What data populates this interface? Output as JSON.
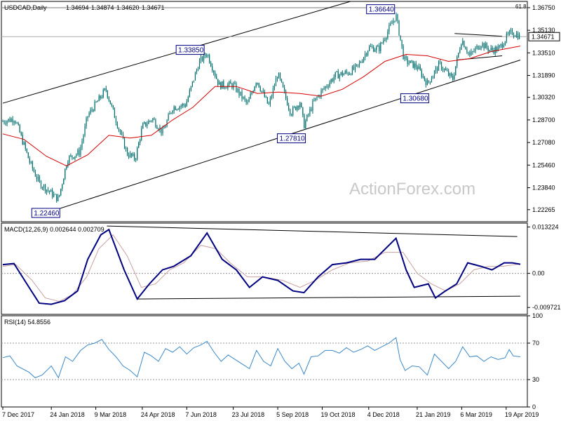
{
  "chart_data": [
    {
      "panel": "price",
      "type": "candlestick",
      "title": "USDCAD,Daily",
      "ohlc_header": [
        "1.34694",
        "1.34874",
        "1.34620",
        "1.34671"
      ],
      "last_price_label": "1.34671",
      "fib_label": "61.8",
      "fib_level": 1.3675,
      "ylim": [
        1.214,
        1.372
      ],
      "yticks": [
        "1.36750",
        "1.35130",
        "1.33510",
        "1.31890",
        "1.30320",
        "1.28700",
        "1.27080",
        "1.25460",
        "1.23840",
        "1.22265"
      ],
      "ytick_values": [
        1.3675,
        1.3513,
        1.3351,
        1.3189,
        1.3032,
        1.287,
        1.2708,
        1.2546,
        1.2384,
        1.22265
      ],
      "xticks": [
        "7 Dec 2017",
        "24 Jan 2018",
        "9 Mar 2018",
        "24 Apr 2018",
        "7 Jun 2018",
        "23 Jul 2018",
        "5 Sep 2018",
        "19 Oct 2018",
        "4 Dec 2018",
        "21 Jan 2019",
        "6 Mar 2019",
        "19 Apr 2019"
      ],
      "annotations": [
        {
          "text": "1.22460",
          "date": "2018-01-31",
          "value": 1.2246
        },
        {
          "text": "1.33850",
          "date": "2018-06-27",
          "value": 1.3385
        },
        {
          "text": "1.27810",
          "date": "2018-10-01",
          "value": 1.2781
        },
        {
          "text": "1.36640",
          "date": "2018-12-31",
          "value": 1.3664
        },
        {
          "text": "1.30680",
          "date": "2019-01-31",
          "value": 1.3068
        }
      ],
      "close_path": [
        [
          "2017-12-07",
          1.286
        ],
        [
          "2017-12-19",
          1.288
        ],
        [
          "2018-01-03",
          1.256
        ],
        [
          "2018-01-12",
          1.242
        ],
        [
          "2018-01-31",
          1.23
        ],
        [
          "2018-02-09",
          1.259
        ],
        [
          "2018-02-21",
          1.264
        ],
        [
          "2018-03-01",
          1.29
        ],
        [
          "2018-03-19",
          1.309
        ],
        [
          "2018-03-28",
          1.289
        ],
        [
          "2018-04-09",
          1.263
        ],
        [
          "2018-04-17",
          1.259
        ],
        [
          "2018-04-24",
          1.282
        ],
        [
          "2018-05-04",
          1.288
        ],
        [
          "2018-05-14",
          1.278
        ],
        [
          "2018-05-24",
          1.296
        ],
        [
          "2018-06-06",
          1.298
        ],
        [
          "2018-06-19",
          1.328
        ],
        [
          "2018-06-27",
          1.335
        ],
        [
          "2018-07-09",
          1.312
        ],
        [
          "2018-07-23",
          1.312
        ],
        [
          "2018-08-06",
          1.298
        ],
        [
          "2018-08-15",
          1.316
        ],
        [
          "2018-08-27",
          1.297
        ],
        [
          "2018-09-05",
          1.32
        ],
        [
          "2018-09-18",
          1.292
        ],
        [
          "2018-09-27",
          1.3
        ],
        [
          "2018-10-01",
          1.283
        ],
        [
          "2018-10-10",
          1.299
        ],
        [
          "2018-10-19",
          1.308
        ],
        [
          "2018-11-01",
          1.319
        ],
        [
          "2018-11-14",
          1.321
        ],
        [
          "2018-11-23",
          1.325
        ],
        [
          "2018-12-04",
          1.339
        ],
        [
          "2018-12-14",
          1.338
        ],
        [
          "2018-12-31",
          1.362
        ],
        [
          "2019-01-08",
          1.33
        ],
        [
          "2019-01-21",
          1.325
        ],
        [
          "2019-01-31",
          1.313
        ],
        [
          "2019-02-12",
          1.327
        ],
        [
          "2019-02-25",
          1.316
        ],
        [
          "2019-03-06",
          1.345
        ],
        [
          "2019-03-14",
          1.333
        ],
        [
          "2019-03-25",
          1.342
        ],
        [
          "2019-04-03",
          1.337
        ],
        [
          "2019-04-12",
          1.338
        ],
        [
          "2019-04-19",
          1.346
        ],
        [
          "2019-04-25",
          1.35
        ],
        [
          "2019-05-03",
          1.3467
        ]
      ],
      "ema": [
        [
          "2017-12-07",
          1.277
        ],
        [
          "2017-12-28",
          1.273
        ],
        [
          "2018-01-19",
          1.261
        ],
        [
          "2018-02-08",
          1.254
        ],
        [
          "2018-03-01",
          1.262
        ],
        [
          "2018-03-22",
          1.276
        ],
        [
          "2018-04-12",
          1.274
        ],
        [
          "2018-05-03",
          1.276
        ],
        [
          "2018-05-24",
          1.287
        ],
        [
          "2018-06-13",
          1.296
        ],
        [
          "2018-07-05",
          1.311
        ],
        [
          "2018-07-26",
          1.311
        ],
        [
          "2018-08-16",
          1.306
        ],
        [
          "2018-09-06",
          1.307
        ],
        [
          "2018-09-27",
          1.306
        ],
        [
          "2018-10-18",
          1.304
        ],
        [
          "2018-11-08",
          1.309
        ],
        [
          "2018-11-29",
          1.318
        ],
        [
          "2018-12-20",
          1.329
        ],
        [
          "2019-01-10",
          1.334
        ],
        [
          "2019-01-31",
          1.333
        ],
        [
          "2019-02-21",
          1.329
        ],
        [
          "2019-03-14",
          1.331
        ],
        [
          "2019-04-04",
          1.336
        ],
        [
          "2019-05-03",
          1.34
        ]
      ],
      "trendlines": [
        {
          "from": [
            "2017-12-07",
            1.299
          ],
          "to": [
            "2018-11-16",
            1.372
          ]
        },
        {
          "from": [
            "2018-01-26",
            1.222
          ],
          "to": [
            "2019-05-03",
            1.33
          ]
        },
        {
          "from": [
            "2019-02-27",
            1.349
          ],
          "to": [
            "2019-04-15",
            1.347
          ]
        },
        {
          "from": [
            "2019-03-01",
            1.33
          ],
          "to": [
            "2019-04-15",
            1.333
          ]
        }
      ]
    },
    {
      "panel": "macd",
      "type": "line",
      "title": "MACD(12,26,9) 0.002644 0.002709",
      "ylim": [
        -0.01168,
        0.01432
      ],
      "yticks": [
        "0.013224",
        "0.00",
        "-0.009721"
      ],
      "ytick_values": [
        0.013224,
        0.0,
        -0.009721
      ],
      "series": [
        {
          "values": [
            [
              "2017-12-07",
              0.0025
            ],
            [
              "2017-12-18",
              0.0028
            ],
            [
              "2018-01-02",
              -0.004
            ],
            [
              "2018-01-12",
              -0.0085
            ],
            [
              "2018-01-24",
              -0.0088
            ],
            [
              "2018-02-06",
              -0.0078
            ],
            [
              "2018-02-19",
              -0.005
            ],
            [
              "2018-03-01",
              0.004
            ],
            [
              "2018-03-14",
              0.011
            ],
            [
              "2018-03-22",
              0.0125
            ],
            [
              "2018-04-06",
              0.001
            ],
            [
              "2018-04-19",
              -0.0073
            ],
            [
              "2018-05-01",
              -0.003
            ],
            [
              "2018-05-14",
              0.001
            ],
            [
              "2018-05-25",
              0.002
            ],
            [
              "2018-06-11",
              0.005
            ],
            [
              "2018-06-27",
              0.0115
            ],
            [
              "2018-07-12",
              0.004
            ],
            [
              "2018-07-26",
              0.001
            ],
            [
              "2018-08-08",
              -0.004
            ],
            [
              "2018-08-21",
              -0.001
            ],
            [
              "2018-09-05",
              -0.002
            ],
            [
              "2018-09-20",
              -0.005
            ],
            [
              "2018-10-01",
              -0.0055
            ],
            [
              "2018-10-15",
              -0.001
            ],
            [
              "2018-10-29",
              0.0025
            ],
            [
              "2018-11-12",
              0.003
            ],
            [
              "2018-11-26",
              0.004
            ],
            [
              "2018-12-10",
              0.004
            ],
            [
              "2018-12-31",
              0.01
            ],
            [
              "2019-01-10",
              0.001
            ],
            [
              "2019-01-18",
              -0.004
            ],
            [
              "2019-02-01",
              -0.003
            ],
            [
              "2019-02-08",
              -0.007
            ],
            [
              "2019-02-18",
              -0.005
            ],
            [
              "2019-03-01",
              -0.003
            ],
            [
              "2019-03-12",
              0.003
            ],
            [
              "2019-03-25",
              0.002
            ],
            [
              "2019-04-05",
              0.001
            ],
            [
              "2019-04-17",
              0.003
            ],
            [
              "2019-04-25",
              0.003
            ],
            [
              "2019-05-03",
              0.0026
            ]
          ]
        },
        {
          "values": [
            [
              "2017-12-07",
              0.002
            ],
            [
              "2017-12-20",
              0.0025
            ],
            [
              "2018-01-05",
              -0.002
            ],
            [
              "2018-01-18",
              -0.007
            ],
            [
              "2018-02-01",
              -0.008
            ],
            [
              "2018-02-14",
              -0.006
            ],
            [
              "2018-02-28",
              -0.001
            ],
            [
              "2018-03-12",
              0.007
            ],
            [
              "2018-03-26",
              0.011
            ],
            [
              "2018-04-09",
              0.005
            ],
            [
              "2018-04-23",
              -0.004
            ],
            [
              "2018-05-07",
              -0.003
            ],
            [
              "2018-05-21",
              0.001
            ],
            [
              "2018-06-04",
              0.003
            ],
            [
              "2018-06-21",
              0.008
            ],
            [
              "2018-07-06",
              0.007
            ],
            [
              "2018-07-20",
              0.003
            ],
            [
              "2018-08-06",
              -0.001
            ],
            [
              "2018-08-22",
              -0.001
            ],
            [
              "2018-09-10",
              -0.002
            ],
            [
              "2018-09-27",
              -0.004
            ],
            [
              "2018-10-12",
              -0.002
            ],
            [
              "2018-10-29",
              0.001
            ],
            [
              "2018-11-15",
              0.003
            ],
            [
              "2018-12-03",
              0.0035
            ],
            [
              "2018-12-20",
              0.006
            ],
            [
              "2019-01-07",
              0.006
            ],
            [
              "2019-01-21",
              0.0
            ],
            [
              "2019-02-04",
              -0.003
            ],
            [
              "2019-02-18",
              -0.005
            ],
            [
              "2019-03-04",
              -0.003
            ],
            [
              "2019-03-18",
              0.001
            ],
            [
              "2019-04-01",
              0.002
            ],
            [
              "2019-04-15",
              0.002
            ],
            [
              "2019-05-03",
              0.0027
            ]
          ]
        }
      ],
      "trendlines": [
        {
          "from": [
            "2018-03-20",
            0.0135
          ],
          "to": [
            "2019-04-30",
            0.0105
          ]
        },
        {
          "from": [
            "2018-04-19",
            -0.0073
          ],
          "to": [
            "2019-05-03",
            -0.0065
          ]
        }
      ]
    },
    {
      "panel": "rsi",
      "type": "line",
      "title": "RSI(14) 54.8556",
      "ylim": [
        0,
        100
      ],
      "yticks": [
        "100",
        "70",
        "30",
        "0"
      ],
      "ytick_values": [
        100,
        70,
        30,
        0
      ],
      "series": [
        {
          "values": [
            [
              "2017-12-07",
              54
            ],
            [
              "2017-12-14",
              56
            ],
            [
              "2017-12-21",
              45
            ],
            [
              "2018-01-02",
              38
            ],
            [
              "2018-01-08",
              32
            ],
            [
              "2018-01-15",
              35
            ],
            [
              "2018-01-24",
              45
            ],
            [
              "2018-01-31",
              32
            ],
            [
              "2018-02-07",
              55
            ],
            [
              "2018-02-14",
              50
            ],
            [
              "2018-02-22",
              62
            ],
            [
              "2018-03-01",
              68
            ],
            [
              "2018-03-08",
              70
            ],
            [
              "2018-03-15",
              74
            ],
            [
              "2018-03-22",
              63
            ],
            [
              "2018-03-29",
              55
            ],
            [
              "2018-04-05",
              45
            ],
            [
              "2018-04-12",
              40
            ],
            [
              "2018-04-19",
              33
            ],
            [
              "2018-04-26",
              60
            ],
            [
              "2018-05-03",
              56
            ],
            [
              "2018-05-10",
              50
            ],
            [
              "2018-05-17",
              64
            ],
            [
              "2018-05-24",
              60
            ],
            [
              "2018-05-31",
              66
            ],
            [
              "2018-06-07",
              58
            ],
            [
              "2018-06-14",
              65
            ],
            [
              "2018-06-21",
              68
            ],
            [
              "2018-06-27",
              72
            ],
            [
              "2018-07-04",
              60
            ],
            [
              "2018-07-11",
              50
            ],
            [
              "2018-07-18",
              57
            ],
            [
              "2018-07-25",
              52
            ],
            [
              "2018-08-01",
              47
            ],
            [
              "2018-08-08",
              42
            ],
            [
              "2018-08-15",
              62
            ],
            [
              "2018-08-22",
              50
            ],
            [
              "2018-08-29",
              45
            ],
            [
              "2018-09-05",
              64
            ],
            [
              "2018-09-12",
              50
            ],
            [
              "2018-09-19",
              42
            ],
            [
              "2018-09-26",
              48
            ],
            [
              "2018-10-01",
              36
            ],
            [
              "2018-10-08",
              55
            ],
            [
              "2018-10-15",
              56
            ],
            [
              "2018-10-22",
              62
            ],
            [
              "2018-10-29",
              62
            ],
            [
              "2018-11-05",
              59
            ],
            [
              "2018-11-12",
              65
            ],
            [
              "2018-11-19",
              60
            ],
            [
              "2018-11-26",
              63
            ],
            [
              "2018-12-03",
              67
            ],
            [
              "2018-12-10",
              62
            ],
            [
              "2018-12-17",
              66
            ],
            [
              "2018-12-24",
              70
            ],
            [
              "2018-12-31",
              76
            ],
            [
              "2019-01-04",
              52
            ],
            [
              "2019-01-09",
              40
            ],
            [
              "2019-01-16",
              45
            ],
            [
              "2019-01-23",
              44
            ],
            [
              "2019-01-31",
              35
            ],
            [
              "2019-02-07",
              58
            ],
            [
              "2019-02-14",
              50
            ],
            [
              "2019-02-21",
              42
            ],
            [
              "2019-02-28",
              50
            ],
            [
              "2019-03-07",
              66
            ],
            [
              "2019-03-14",
              55
            ],
            [
              "2019-03-21",
              56
            ],
            [
              "2019-03-28",
              50
            ],
            [
              "2019-04-04",
              55
            ],
            [
              "2019-04-11",
              52
            ],
            [
              "2019-04-18",
              54
            ],
            [
              "2019-04-22",
              63
            ],
            [
              "2019-04-26",
              56
            ],
            [
              "2019-05-03",
              55
            ]
          ]
        }
      ]
    }
  ],
  "watermark": "ActionForex.com",
  "colors": {
    "candle": "#006d6d",
    "ema": "#d40000",
    "macd": "#000080",
    "macd_signal": "#c8a0a0",
    "rsi": "#3a88c8",
    "trendline": "#000000",
    "frame": "#000000",
    "watermark": "#c8c8c8"
  }
}
